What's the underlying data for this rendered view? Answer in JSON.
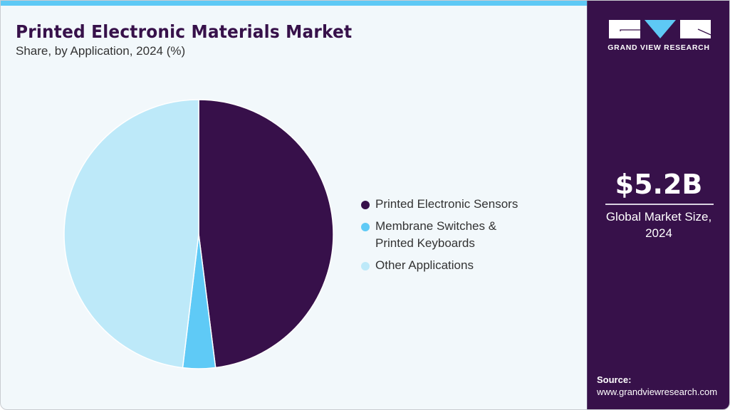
{
  "header": {
    "title": "Printed Electronic Materials Market",
    "subtitle": "Share, by Application, 2024 (%)"
  },
  "colors": {
    "accent_bar": "#5ec9f5",
    "panel": "#37114a",
    "background": "#f2f8fb",
    "sensors": "#37104a",
    "membrane": "#5fcaf6",
    "other": "#bde9f9"
  },
  "legend": {
    "items": [
      {
        "label": "Printed Electronic Sensors",
        "color": "#37104a"
      },
      {
        "label": "Membrane Switches & Printed Keyboards",
        "line1": "Membrane Switches &",
        "line2": "Printed Keyboards",
        "color": "#5fcaf6"
      },
      {
        "label": "Other Applications",
        "color": "#bde9f9"
      }
    ]
  },
  "side_panel": {
    "brand": "GRAND VIEW RESEARCH",
    "market_size": "$5.2B",
    "market_size_label": "Global Market Size, 2024",
    "market_size_label_line1": "Global Market Size,",
    "market_size_label_line2": "2024",
    "source_label": "Source:",
    "source_url": "www.grandviewresearch.com"
  },
  "chart_data": {
    "type": "pie",
    "title": "Printed Electronic Materials Market",
    "subtitle": "Share, by Application, 2024 (%)",
    "categories": [
      "Printed Electronic Sensors",
      "Membrane Switches & Printed Keyboards",
      "Other Applications"
    ],
    "values": [
      48.0,
      3.9,
      48.1
    ],
    "colors": [
      "#37104a",
      "#5fcaf6",
      "#bde9f9"
    ],
    "start_angle_deg": 0,
    "direction": "clockwise",
    "legend_position": "right",
    "data_labels": false
  }
}
